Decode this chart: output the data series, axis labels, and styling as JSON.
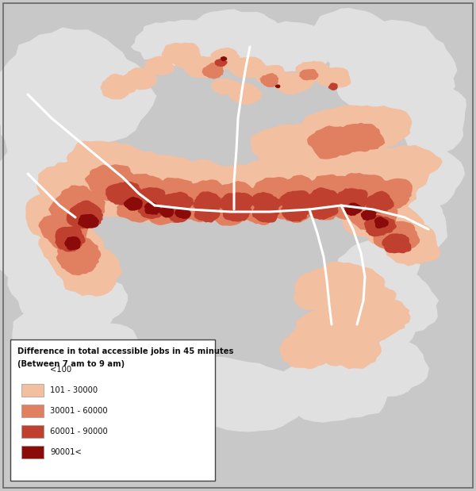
{
  "figure_width": 6.0,
  "figure_height": 6.19,
  "dpi": 100,
  "background_color": "#c8c8c8",
  "map_background": "#d0d0d0",
  "legend_title_line1": "Difference in total accessible jobs in 45 minutes",
  "legend_title_line2": "(Between 7 am to 9 am)",
  "legend_labels": [
    "<100",
    "101 - 30000",
    "30001 - 60000",
    "60001 - 90000",
    "90001<"
  ],
  "legend_colors": [
    "#ffffff",
    "#f2bfa0",
    "#e08060",
    "#c04030",
    "#8b0a0a"
  ],
  "legend_box_color": "#ffffff",
  "legend_box_edge": "#444444",
  "road_color": "#ffffff",
  "outer_border_color": "#666666",
  "land_color": "#c8c8c8",
  "light_land_color": "#e0e0e0"
}
